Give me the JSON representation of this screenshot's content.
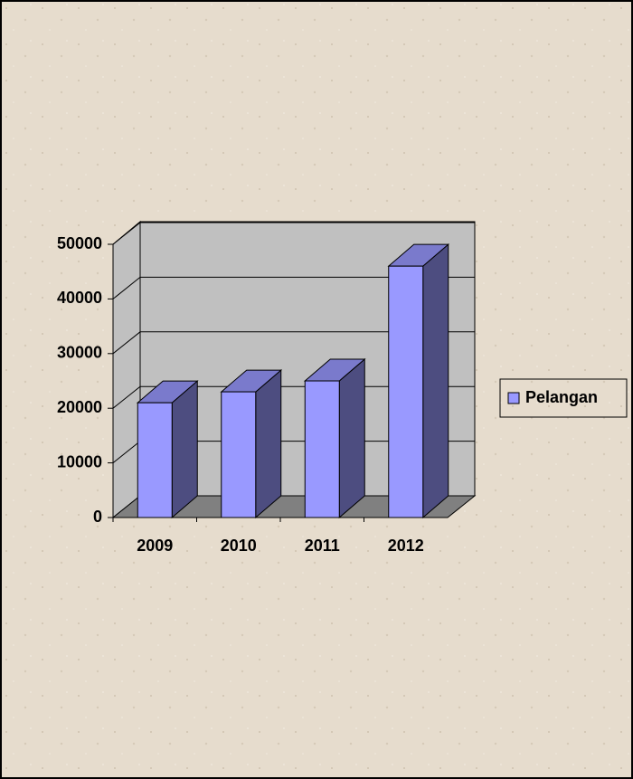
{
  "chart_data": {
    "type": "bar3d",
    "categories": [
      "2009",
      "2010",
      "2011",
      "2012"
    ],
    "series": [
      {
        "name": "Pelangan",
        "color": "#9999ff",
        "values": [
          21000,
          23000,
          25000,
          46000
        ]
      }
    ],
    "ylim": [
      0,
      50000
    ],
    "yticks": [
      0,
      10000,
      20000,
      30000,
      40000,
      50000
    ],
    "grid": true,
    "legend": "right"
  }
}
